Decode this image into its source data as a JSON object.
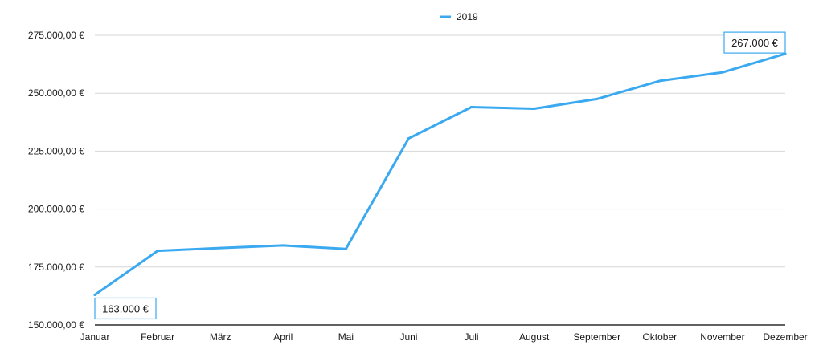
{
  "chart_data": {
    "type": "line",
    "title": "",
    "xlabel": "",
    "ylabel": "",
    "categories": [
      "Januar",
      "Februar",
      "März",
      "April",
      "Mai",
      "Juni",
      "Juli",
      "August",
      "September",
      "Oktober",
      "November",
      "Dezember"
    ],
    "series": [
      {
        "name": "2019",
        "color": "#3aa9f0",
        "values": [
          163000,
          182000,
          183200,
          184300,
          182800,
          230500,
          244000,
          243300,
          247500,
          255300,
          259000,
          267000
        ]
      }
    ],
    "ylim": [
      150000,
      275000
    ],
    "yticks": [
      150000,
      175000,
      200000,
      225000,
      250000,
      275000
    ],
    "ytick_labels": [
      "150.000,00 €",
      "175.000,00 €",
      "200.000,00 €",
      "225.000,00 €",
      "250.000,00 €",
      "275.000,00 €"
    ],
    "grid": true,
    "legend_position": "top-center",
    "annotations": [
      {
        "category": "Januar",
        "text": "163.000 €"
      },
      {
        "category": "Dezember",
        "text": "267.000 €"
      }
    ]
  }
}
